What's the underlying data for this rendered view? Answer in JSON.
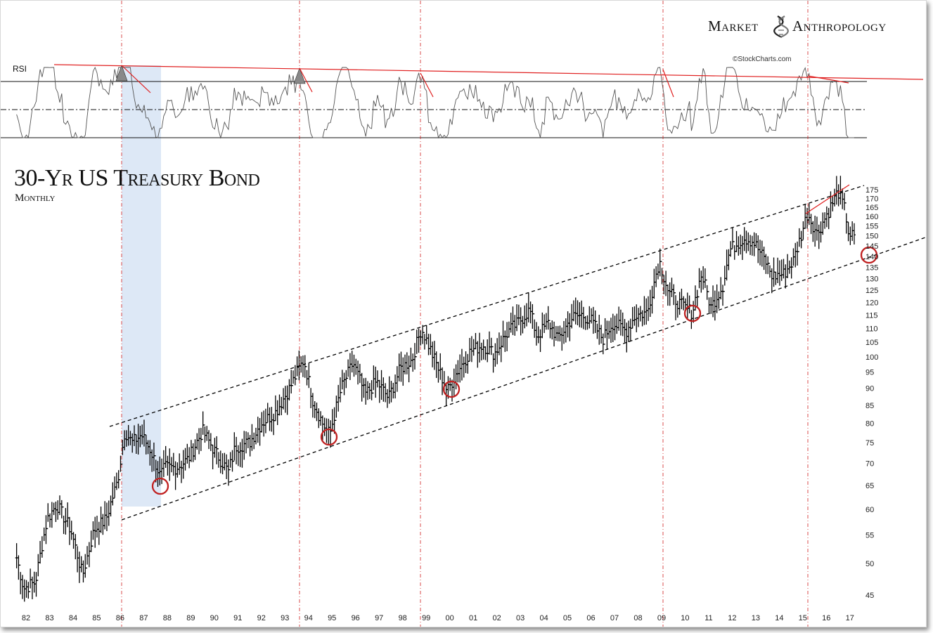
{
  "brand": {
    "left": "Market",
    "right": "Anthropology",
    "credit": "©StockCharts.com"
  },
  "indicator_label": "RSI",
  "title": "30-Yr US Treasury Bond",
  "subtitle": "Monthly",
  "colors": {
    "bars": "#000000",
    "trend": "#e02020",
    "highlight": "#dde8f6",
    "circles": "#c02020",
    "vline": "#d02020"
  },
  "chart_data": {
    "type": "ohlc",
    "scale": "log",
    "ylim": [
      42,
      180
    ],
    "y_ticks": [
      45,
      50,
      55,
      60,
      65,
      70,
      75,
      80,
      85,
      90,
      95,
      100,
      105,
      110,
      115,
      120,
      125,
      130,
      135,
      140,
      145,
      150,
      155,
      160,
      165,
      170,
      175
    ],
    "x_ticks": [
      "82",
      "83",
      "84",
      "85",
      "86",
      "87",
      "88",
      "89",
      "90",
      "91",
      "92",
      "93",
      "94",
      "95",
      "96",
      "97",
      "98",
      "99",
      "00",
      "01",
      "02",
      "03",
      "04",
      "05",
      "06",
      "07",
      "08",
      "09",
      "10",
      "11",
      "12",
      "13",
      "14",
      "15",
      "16",
      "17"
    ],
    "anchors": [
      {
        "t": "1981.6",
        "v": 51
      },
      {
        "t": "1981.9",
        "v": 46
      },
      {
        "t": "1982.4",
        "v": 47
      },
      {
        "t": "1982.9",
        "v": 58
      },
      {
        "t": "1983.3",
        "v": 61
      },
      {
        "t": "1983.9",
        "v": 56
      },
      {
        "t": "1984.4",
        "v": 48
      },
      {
        "t": "1984.9",
        "v": 56
      },
      {
        "t": "1985.4",
        "v": 58
      },
      {
        "t": "1985.9",
        "v": 66
      },
      {
        "t": "1986.2",
        "v": 78
      },
      {
        "t": "1986.5",
        "v": 75
      },
      {
        "t": "1986.9",
        "v": 77
      },
      {
        "t": "1987.3",
        "v": 73
      },
      {
        "t": "1987.7",
        "v": 67
      },
      {
        "t": "1987.9",
        "v": 69
      },
      {
        "t": "1988.4",
        "v": 69
      },
      {
        "t": "1988.9",
        "v": 71
      },
      {
        "t": "1989.5",
        "v": 78
      },
      {
        "t": "1990.0",
        "v": 73
      },
      {
        "t": "1990.6",
        "v": 68
      },
      {
        "t": "1990.9",
        "v": 74
      },
      {
        "t": "1991.5",
        "v": 75
      },
      {
        "t": "1992.0",
        "v": 80
      },
      {
        "t": "1992.6",
        "v": 83
      },
      {
        "t": "1993.2",
        "v": 90
      },
      {
        "t": "1993.8",
        "v": 99
      },
      {
        "t": "1994.2",
        "v": 86
      },
      {
        "t": "1994.6",
        "v": 80
      },
      {
        "t": "1994.9",
        "v": 77
      },
      {
        "t": "1995.4",
        "v": 90
      },
      {
        "t": "1995.9",
        "v": 98
      },
      {
        "t": "1996.4",
        "v": 88
      },
      {
        "t": "1996.9",
        "v": 92
      },
      {
        "t": "1997.4",
        "v": 87
      },
      {
        "t": "1997.9",
        "v": 96
      },
      {
        "t": "1998.4",
        "v": 99
      },
      {
        "t": "1998.8",
        "v": 110
      },
      {
        "t": "1999.3",
        "v": 100
      },
      {
        "t": "1999.9",
        "v": 89
      },
      {
        "t": "2000.3",
        "v": 95
      },
      {
        "t": "2000.9",
        "v": 102
      },
      {
        "t": "2001.4",
        "v": 104
      },
      {
        "t": "2001.9",
        "v": 101
      },
      {
        "t": "2002.5",
        "v": 109
      },
      {
        "t": "2002.9",
        "v": 112
      },
      {
        "t": "2003.4",
        "v": 117
      },
      {
        "t": "2003.7",
        "v": 107
      },
      {
        "t": "2004.2",
        "v": 112
      },
      {
        "t": "2004.6",
        "v": 106
      },
      {
        "t": "2005.2",
        "v": 114
      },
      {
        "t": "2005.6",
        "v": 115
      },
      {
        "t": "2006.0",
        "v": 113
      },
      {
        "t": "2006.5",
        "v": 106
      },
      {
        "t": "2006.9",
        "v": 112
      },
      {
        "t": "2007.5",
        "v": 109
      },
      {
        "t": "2007.9",
        "v": 115
      },
      {
        "t": "2008.4",
        "v": 116
      },
      {
        "t": "2008.9",
        "v": 138
      },
      {
        "t": "2009.3",
        "v": 124
      },
      {
        "t": "2009.8",
        "v": 119
      },
      {
        "t": "2010.3",
        "v": 116
      },
      {
        "t": "2010.7",
        "v": 132
      },
      {
        "t": "2011.1",
        "v": 118
      },
      {
        "t": "2011.6",
        "v": 127
      },
      {
        "t": "2011.9",
        "v": 143
      },
      {
        "t": "2012.5",
        "v": 149
      },
      {
        "t": "2012.9",
        "v": 147
      },
      {
        "t": "2013.4",
        "v": 138
      },
      {
        "t": "2013.7",
        "v": 131
      },
      {
        "t": "2014.2",
        "v": 132
      },
      {
        "t": "2014.6",
        "v": 138
      },
      {
        "t": "2014.9",
        "v": 149
      },
      {
        "t": "2015.2",
        "v": 162
      },
      {
        "t": "2015.6",
        "v": 151
      },
      {
        "t": "2016.1",
        "v": 163
      },
      {
        "t": "2016.5",
        "v": 174
      },
      {
        "t": "2016.8",
        "v": 163
      },
      {
        "t": "2016.95",
        "v": 151
      },
      {
        "t": "2017.2",
        "v": 149
      }
    ]
  }
}
